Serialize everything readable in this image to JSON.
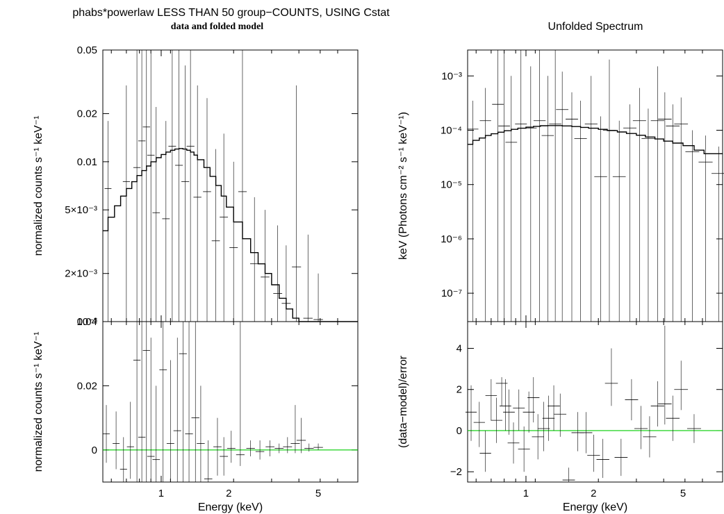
{
  "titles": {
    "main": "phabs*powerlaw LESS THAN 50 group−COUNTS, USING Cstat",
    "sub": "data and folded model",
    "right": "Unfolded Spectrum"
  },
  "colors": {
    "data": "#000000",
    "model": "#000000",
    "zero_line": "#00cc00"
  },
  "chart_data": [
    {
      "type": "line",
      "panel": "top-left",
      "title": "data and folded model",
      "xlabel": "",
      "ylabel": "normalized counts s⁻¹ keV⁻¹",
      "xscale": "log",
      "yscale": "log",
      "xlim": [
        0.55,
        7.5
      ],
      "ylim": [
        0.001,
        0.05
      ],
      "yticks": [
        {
          "v": 0.05,
          "label": "0.05"
        },
        {
          "v": 0.02,
          "label": "0.02"
        },
        {
          "v": 0.01,
          "label": "0.01"
        },
        {
          "v": 0.005,
          "label": "5×10⁻³"
        },
        {
          "v": 0.002,
          "label": "2×10⁻³"
        },
        {
          "v": 0.001,
          "label": "10⁻³"
        }
      ],
      "xticks": [],
      "model_step": [
        [
          0.55,
          0.0037
        ],
        [
          0.58,
          0.0045
        ],
        [
          0.62,
          0.0053
        ],
        [
          0.66,
          0.0061
        ],
        [
          0.7,
          0.0068
        ],
        [
          0.74,
          0.0075
        ],
        [
          0.78,
          0.0082
        ],
        [
          0.82,
          0.0088
        ],
        [
          0.86,
          0.0094
        ],
        [
          0.9,
          0.01
        ],
        [
          0.95,
          0.0106
        ],
        [
          1.0,
          0.0111
        ],
        [
          1.05,
          0.0115
        ],
        [
          1.1,
          0.0118
        ],
        [
          1.15,
          0.012
        ],
        [
          1.2,
          0.0121
        ],
        [
          1.25,
          0.012
        ],
        [
          1.3,
          0.0118
        ],
        [
          1.35,
          0.0115
        ],
        [
          1.4,
          0.011
        ],
        [
          1.45,
          0.0103
        ],
        [
          1.55,
          0.0092
        ],
        [
          1.65,
          0.0081
        ],
        [
          1.75,
          0.0071
        ],
        [
          1.85,
          0.0061
        ],
        [
          1.95,
          0.0052
        ],
        [
          2.1,
          0.0042
        ],
        [
          2.3,
          0.0033
        ],
        [
          2.5,
          0.0027
        ],
        [
          2.7,
          0.0023
        ],
        [
          2.9,
          0.002
        ],
        [
          3.1,
          0.0017
        ],
        [
          3.35,
          0.0014
        ],
        [
          3.6,
          0.0012
        ],
        [
          3.85,
          0.00105
        ],
        [
          4.1,
          0.001
        ]
      ],
      "data_points": [
        {
          "x": 0.58,
          "y": 0.0068,
          "lo": 0.001,
          "hi": 0.018
        },
        {
          "x": 0.7,
          "y": 0.0075,
          "lo": 0.001,
          "hi": 0.03
        },
        {
          "x": 0.78,
          "y": 0.0092,
          "lo": 0.001,
          "hi": 0.05
        },
        {
          "x": 0.82,
          "y": 0.0135,
          "lo": 0.001,
          "hi": 0.05
        },
        {
          "x": 0.86,
          "y": 0.0165,
          "lo": 0.001,
          "hi": 0.05
        },
        {
          "x": 0.9,
          "y": 0.011,
          "lo": 0.001,
          "hi": 0.05
        },
        {
          "x": 0.95,
          "y": 0.0048,
          "lo": 0.001,
          "hi": 0.022
        },
        {
          "x": 1.05,
          "y": 0.0044,
          "lo": 0.001,
          "hi": 0.018
        },
        {
          "x": 1.12,
          "y": 0.0125,
          "lo": 0.001,
          "hi": 0.05
        },
        {
          "x": 1.2,
          "y": 0.0095,
          "lo": 0.001,
          "hi": 0.05
        },
        {
          "x": 1.28,
          "y": 0.0075,
          "lo": 0.001,
          "hi": 0.04
        },
        {
          "x": 1.35,
          "y": 0.0125,
          "lo": 0.001,
          "hi": 0.05
        },
        {
          "x": 1.45,
          "y": 0.006,
          "lo": 0.001,
          "hi": 0.03
        },
        {
          "x": 1.6,
          "y": 0.0065,
          "lo": 0.001,
          "hi": 0.025
        },
        {
          "x": 1.75,
          "y": 0.0032,
          "lo": 0.001,
          "hi": 0.012
        },
        {
          "x": 1.9,
          "y": 0.0045,
          "lo": 0.001,
          "hi": 0.015
        },
        {
          "x": 2.1,
          "y": 0.0029,
          "lo": 0.001,
          "hi": 0.01
        },
        {
          "x": 2.3,
          "y": 0.0065,
          "lo": 0.001,
          "hi": 0.05
        },
        {
          "x": 2.6,
          "y": 0.0023,
          "lo": 0.001,
          "hi": 0.006
        },
        {
          "x": 2.9,
          "y": 0.0019,
          "lo": 0.001,
          "hi": 0.005
        },
        {
          "x": 3.3,
          "y": 0.0015,
          "lo": 0.001,
          "hi": 0.004
        },
        {
          "x": 3.6,
          "y": 0.0013,
          "lo": 0.001,
          "hi": 0.003
        },
        {
          "x": 4.0,
          "y": 0.0022,
          "lo": 0.001,
          "hi": 0.03
        },
        {
          "x": 4.5,
          "y": 0.00105,
          "lo": 0.001,
          "hi": 0.0035
        },
        {
          "x": 5.0,
          "y": 0.00103,
          "lo": 0.001,
          "hi": 0.002
        }
      ]
    },
    {
      "type": "scatter",
      "panel": "bottom-left",
      "xlabel": "Energy (keV)",
      "ylabel": "normalized counts s⁻¹ keV⁻¹",
      "xscale": "log",
      "yscale": "linear",
      "xlim": [
        0.55,
        7.5
      ],
      "ylim": [
        -0.01,
        0.04
      ],
      "yticks": [
        {
          "v": 0.04,
          "label": "0.04"
        },
        {
          "v": 0.02,
          "label": "0.02"
        },
        {
          "v": 0,
          "label": "0"
        }
      ],
      "xticks": [
        {
          "v": 1,
          "label": "1"
        },
        {
          "v": 2,
          "label": "2"
        },
        {
          "v": 5,
          "label": "5"
        }
      ],
      "zero_line": 0,
      "data_points": [
        {
          "x": 0.57,
          "y": 0.005,
          "lo": -0.004,
          "hi": 0.014
        },
        {
          "x": 0.63,
          "y": 0.002,
          "lo": -0.006,
          "hi": 0.012
        },
        {
          "x": 0.68,
          "y": -0.006,
          "lo": -0.01,
          "hi": 0.004
        },
        {
          "x": 0.73,
          "y": 0.001,
          "lo": -0.009,
          "hi": 0.015
        },
        {
          "x": 0.78,
          "y": 0.028,
          "lo": -0.01,
          "hi": 0.04
        },
        {
          "x": 0.82,
          "y": 0.004,
          "lo": -0.01,
          "hi": 0.04
        },
        {
          "x": 0.86,
          "y": 0.031,
          "lo": -0.01,
          "hi": 0.04
        },
        {
          "x": 0.9,
          "y": -0.002,
          "lo": -0.01,
          "hi": 0.035
        },
        {
          "x": 0.95,
          "y": -0.003,
          "lo": -0.01,
          "hi": 0.02
        },
        {
          "x": 1.02,
          "y": 0.025,
          "lo": -0.01,
          "hi": 0.04
        },
        {
          "x": 1.1,
          "y": 0.002,
          "lo": -0.01,
          "hi": 0.028
        },
        {
          "x": 1.18,
          "y": 0.006,
          "lo": -0.01,
          "hi": 0.035
        },
        {
          "x": 1.25,
          "y": 0.03,
          "lo": -0.01,
          "hi": 0.04
        },
        {
          "x": 1.33,
          "y": 0.005,
          "lo": -0.01,
          "hi": 0.04
        },
        {
          "x": 1.42,
          "y": 0.01,
          "lo": -0.01,
          "hi": 0.04
        },
        {
          "x": 1.5,
          "y": 0.002,
          "lo": -0.01,
          "hi": 0.02
        },
        {
          "x": 1.62,
          "y": -0.009,
          "lo": -0.01,
          "hi": 0.003
        },
        {
          "x": 1.78,
          "y": 0.001,
          "lo": -0.008,
          "hi": 0.01
        },
        {
          "x": 1.9,
          "y": -0.002,
          "lo": -0.008,
          "hi": 0.004
        },
        {
          "x": 2.05,
          "y": 0.0005,
          "lo": -0.004,
          "hi": 0.006
        },
        {
          "x": 2.25,
          "y": -0.0015,
          "lo": -0.005,
          "hi": 0.04
        },
        {
          "x": 2.5,
          "y": 0.0005,
          "lo": -0.002,
          "hi": 0.003
        },
        {
          "x": 2.75,
          "y": -0.0005,
          "lo": -0.003,
          "hi": 0.003
        },
        {
          "x": 3.05,
          "y": 0.001,
          "lo": -0.002,
          "hi": 0.003
        },
        {
          "x": 3.35,
          "y": 0.0005,
          "lo": -0.001,
          "hi": 0.002
        },
        {
          "x": 3.65,
          "y": 0.001,
          "lo": -0.001,
          "hi": 0.004
        },
        {
          "x": 3.95,
          "y": 0.002,
          "lo": -0.001,
          "hi": 0.014
        },
        {
          "x": 4.2,
          "y": 0.003,
          "lo": -0.001,
          "hi": 0.01
        },
        {
          "x": 4.55,
          "y": 0.0005,
          "lo": -0.0005,
          "hi": 0.002
        },
        {
          "x": 5.0,
          "y": 0.0008,
          "lo": 0.0,
          "hi": 0.002
        }
      ]
    },
    {
      "type": "line",
      "panel": "top-right",
      "title": "Unfolded Spectrum",
      "xlabel": "",
      "ylabel": "keV (Photons cm⁻² s⁻¹ keV⁻¹)",
      "xscale": "log",
      "yscale": "log",
      "xlim": [
        0.55,
        7.5
      ],
      "ylim": [
        3e-08,
        0.003
      ],
      "yticks": [
        {
          "v": 0.001,
          "label": "10⁻³"
        },
        {
          "v": 0.0001,
          "label": "10⁻⁴"
        },
        {
          "v": 1e-05,
          "label": "10⁻⁵"
        },
        {
          "v": 1e-06,
          "label": "10⁻⁶"
        },
        {
          "v": 1e-07,
          "label": "10⁻⁷"
        }
      ],
      "xticks": [],
      "model_step": [
        [
          0.55,
          5.5e-05
        ],
        [
          0.58,
          6.5e-05
        ],
        [
          0.62,
          7.2e-05
        ],
        [
          0.66,
          8e-05
        ],
        [
          0.7,
          8.6e-05
        ],
        [
          0.75,
          9.2e-05
        ],
        [
          0.8,
          9.8e-05
        ],
        [
          0.86,
          0.000104
        ],
        [
          0.92,
          0.000109
        ],
        [
          1.0,
          0.000114
        ],
        [
          1.08,
          0.000118
        ],
        [
          1.16,
          0.000121
        ],
        [
          1.25,
          0.000122
        ],
        [
          1.35,
          0.000122
        ],
        [
          1.45,
          0.00012
        ],
        [
          1.6,
          0.000117
        ],
        [
          1.75,
          0.000113
        ],
        [
          1.9,
          0.000109
        ],
        [
          2.1,
          0.000104
        ],
        [
          2.3,
          9.9e-05
        ],
        [
          2.55,
          9.3e-05
        ],
        [
          2.8,
          8.7e-05
        ],
        [
          3.1,
          8.1e-05
        ],
        [
          3.4,
          7.5e-05
        ],
        [
          3.75,
          6.9e-05
        ],
        [
          4.1,
          6.3e-05
        ],
        [
          4.5,
          5.8e-05
        ],
        [
          5.0,
          5.2e-05
        ],
        [
          5.6,
          4.3e-05
        ],
        [
          6.2,
          3.7e-05
        ],
        [
          7.5,
          3.7e-05
        ]
      ],
      "data_points": [
        {
          "x": 0.58,
          "y": 0.000105,
          "lo": 3e-08,
          "hi": 0.00035
        },
        {
          "x": 0.66,
          "y": 0.00015,
          "lo": 3e-08,
          "hi": 0.0006
        },
        {
          "x": 0.75,
          "y": 0.0003,
          "lo": 3e-08,
          "hi": 0.003
        },
        {
          "x": 0.8,
          "y": 0.00012,
          "lo": 3e-08,
          "hi": 0.003
        },
        {
          "x": 0.86,
          "y": 6e-05,
          "lo": 3e-08,
          "hi": 0.001
        },
        {
          "x": 0.95,
          "y": 0.00013,
          "lo": 3e-08,
          "hi": 0.003
        },
        {
          "x": 1.05,
          "y": 0.00011,
          "lo": 3e-08,
          "hi": 0.0015
        },
        {
          "x": 1.15,
          "y": 0.00015,
          "lo": 3e-08,
          "hi": 0.003
        },
        {
          "x": 1.25,
          "y": 8e-05,
          "lo": 3e-08,
          "hi": 0.001
        },
        {
          "x": 1.35,
          "y": 0.00013,
          "lo": 3e-08,
          "hi": 0.003
        },
        {
          "x": 1.45,
          "y": 0.00024,
          "lo": 3e-08,
          "hi": 0.0012
        },
        {
          "x": 1.6,
          "y": 0.00016,
          "lo": 3e-08,
          "hi": 0.0005
        },
        {
          "x": 1.75,
          "y": 7e-05,
          "lo": 3e-08,
          "hi": 0.00035
        },
        {
          "x": 1.95,
          "y": 0.00013,
          "lo": 3e-08,
          "hi": 0.001
        },
        {
          "x": 2.15,
          "y": 1.4e-05,
          "lo": 3e-08,
          "hi": 0.00018
        },
        {
          "x": 2.35,
          "y": 0.0001,
          "lo": 3e-08,
          "hi": 0.002
        },
        {
          "x": 2.6,
          "y": 1.4e-05,
          "lo": 3e-08,
          "hi": 0.00015
        },
        {
          "x": 2.9,
          "y": 0.00011,
          "lo": 3e-08,
          "hi": 0.0003
        },
        {
          "x": 3.2,
          "y": 0.00015,
          "lo": 3e-08,
          "hi": 0.0006
        },
        {
          "x": 3.5,
          "y": 7e-05,
          "lo": 3e-08,
          "hi": 0.00025
        },
        {
          "x": 3.85,
          "y": 0.00015,
          "lo": 3e-08,
          "hi": 0.0015
        },
        {
          "x": 4.15,
          "y": 0.00016,
          "lo": 3e-08,
          "hi": 0.0005
        },
        {
          "x": 4.5,
          "y": 0.00012,
          "lo": 3e-08,
          "hi": 0.0003
        },
        {
          "x": 4.9,
          "y": 0.00013,
          "lo": 3e-08,
          "hi": 0.0004
        },
        {
          "x": 5.5,
          "y": 4e-05,
          "lo": 3e-08,
          "hi": 0.0001
        },
        {
          "x": 6.3,
          "y": 2.6e-05,
          "lo": 3e-08,
          "hi": 8e-05
        },
        {
          "x": 7.2,
          "y": 1.6e-05,
          "lo": 3e-08,
          "hi": 5e-05
        }
      ]
    },
    {
      "type": "scatter",
      "panel": "bottom-right",
      "xlabel": "Energy (keV)",
      "ylabel": "(data−model)/error",
      "xscale": "log",
      "yscale": "linear",
      "xlim": [
        0.55,
        7.5
      ],
      "ylim": [
        -2.5,
        5.3
      ],
      "yticks": [
        {
          "v": 4,
          "label": "4"
        },
        {
          "v": 2,
          "label": "2"
        },
        {
          "v": 0,
          "label": "0"
        },
        {
          "v": -2,
          "label": "−2"
        }
      ],
      "xticks": [
        {
          "v": 1,
          "label": "1"
        },
        {
          "v": 2,
          "label": "2"
        },
        {
          "v": 5,
          "label": "5"
        }
      ],
      "zero_line": 0,
      "data_points": [
        {
          "x": 0.57,
          "y": 0.9,
          "lo": -0.5,
          "hi": 2.2
        },
        {
          "x": 0.62,
          "y": 0.4,
          "lo": -0.8,
          "hi": 1.4
        },
        {
          "x": 0.66,
          "y": -1.1,
          "lo": -2.0,
          "hi": 0.0
        },
        {
          "x": 0.7,
          "y": 1.7,
          "lo": 0.5,
          "hi": 2.5
        },
        {
          "x": 0.74,
          "y": 0.5,
          "lo": -0.6,
          "hi": 1.6
        },
        {
          "x": 0.78,
          "y": 2.3,
          "lo": 1.2,
          "hi": 2.6
        },
        {
          "x": 0.81,
          "y": 1.2,
          "lo": 0.0,
          "hi": 2.5
        },
        {
          "x": 0.84,
          "y": 0.9,
          "lo": -0.2,
          "hi": 2.0
        },
        {
          "x": 0.88,
          "y": -0.6,
          "lo": -1.6,
          "hi": 0.4
        },
        {
          "x": 0.93,
          "y": 1.1,
          "lo": 0.0,
          "hi": 2.0
        },
        {
          "x": 0.98,
          "y": -0.9,
          "lo": -2.0,
          "hi": 0.2
        },
        {
          "x": 1.03,
          "y": 0.9,
          "lo": -0.1,
          "hi": 1.9
        },
        {
          "x": 1.08,
          "y": 1.6,
          "lo": 0.4,
          "hi": 2.6
        },
        {
          "x": 1.13,
          "y": -0.3,
          "lo": -1.4,
          "hi": 0.8
        },
        {
          "x": 1.2,
          "y": 0.1,
          "lo": -1.0,
          "hi": 1.4
        },
        {
          "x": 1.26,
          "y": 0.6,
          "lo": -0.5,
          "hi": 1.7
        },
        {
          "x": 1.33,
          "y": 1.2,
          "lo": 0.0,
          "hi": 2.2
        },
        {
          "x": 1.42,
          "y": 0.8,
          "lo": -0.3,
          "hi": 1.8
        },
        {
          "x": 1.55,
          "y": -2.4,
          "lo": -2.5,
          "hi": -1.8
        },
        {
          "x": 1.7,
          "y": -0.1,
          "lo": -1.0,
          "hi": 0.9
        },
        {
          "x": 1.85,
          "y": -0.1,
          "lo": -1.1,
          "hi": 0.9
        },
        {
          "x": 2.0,
          "y": -1.2,
          "lo": -2.0,
          "hi": -0.2
        },
        {
          "x": 2.2,
          "y": -1.4,
          "lo": -2.3,
          "hi": -0.4
        },
        {
          "x": 2.4,
          "y": 2.3,
          "lo": 1.2,
          "hi": 4.0
        },
        {
          "x": 2.65,
          "y": -1.3,
          "lo": -2.2,
          "hi": -0.4
        },
        {
          "x": 2.95,
          "y": 1.5,
          "lo": 0.5,
          "hi": 2.5
        },
        {
          "x": 3.25,
          "y": 0.1,
          "lo": -0.9,
          "hi": 1.2
        },
        {
          "x": 3.55,
          "y": -0.3,
          "lo": -1.3,
          "hi": 0.7
        },
        {
          "x": 3.85,
          "y": 1.2,
          "lo": 0.2,
          "hi": 2.4
        },
        {
          "x": 4.15,
          "y": 1.3,
          "lo": 0.3,
          "hi": 5.1
        },
        {
          "x": 4.5,
          "y": 0.6,
          "lo": -0.5,
          "hi": 1.7
        },
        {
          "x": 4.9,
          "y": 2.0,
          "lo": 1.0,
          "hi": 3.4
        },
        {
          "x": 5.6,
          "y": 0.1,
          "lo": -0.6,
          "hi": 0.8
        }
      ]
    }
  ]
}
